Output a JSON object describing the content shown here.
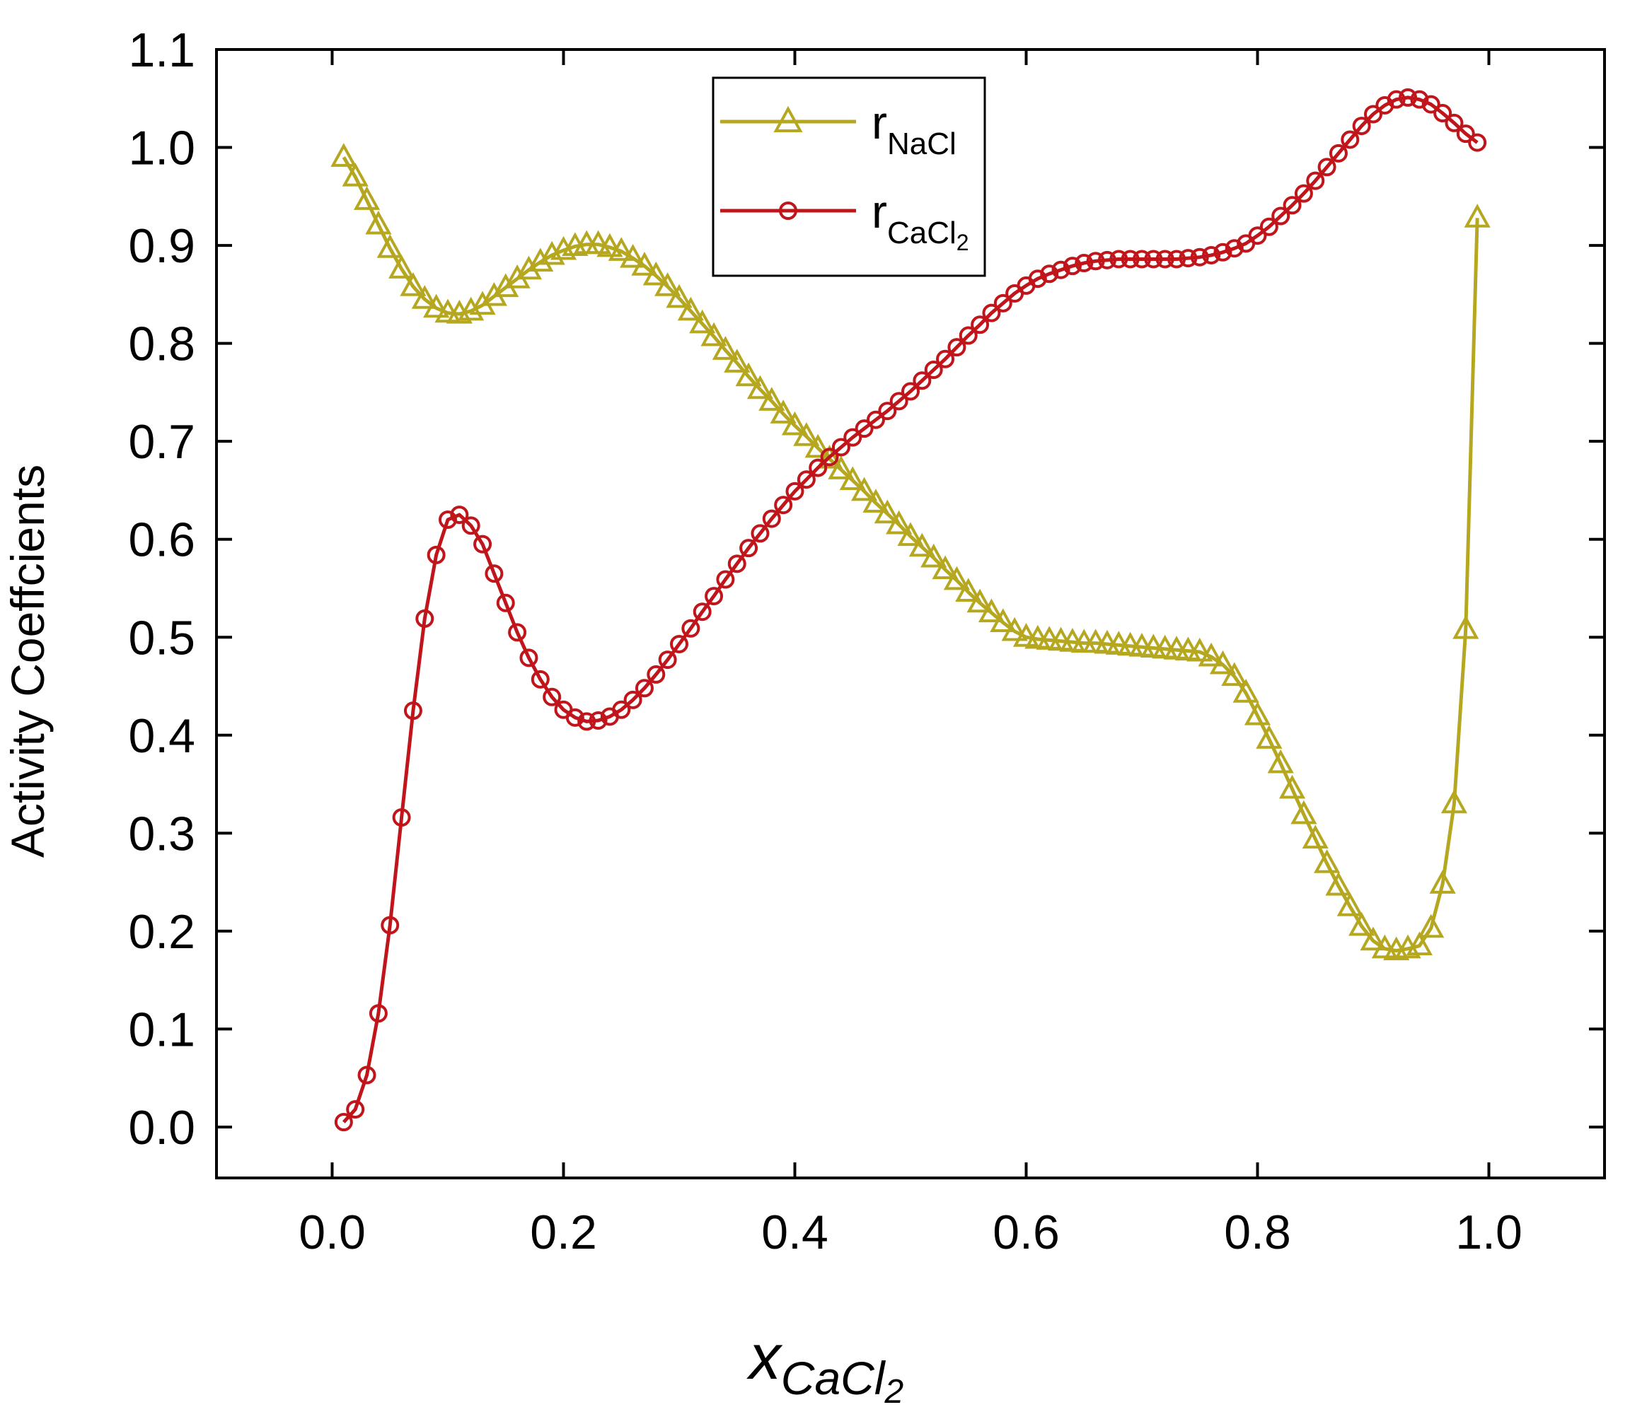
{
  "chart_data": {
    "type": "line",
    "title": "",
    "ylabel": "Activity Coeffcients",
    "xlabel": {
      "main": "x",
      "sub_main": "CaCl",
      "sub_index": "2"
    },
    "xlim": [
      -0.1,
      1.1
    ],
    "ylim": [
      -0.052,
      1.1
    ],
    "xticks": [
      0.0,
      0.2,
      0.4,
      0.6,
      0.8,
      1.0
    ],
    "xtick_labels": [
      "0.0",
      "0.2",
      "0.4",
      "0.6",
      "0.8",
      "1.0"
    ],
    "yticks": [
      0.0,
      0.1,
      0.2,
      0.3,
      0.4,
      0.5,
      0.6,
      0.7,
      0.8,
      0.9,
      1.0,
      1.1
    ],
    "ytick_labels": [
      "0.0",
      "0.1",
      "0.2",
      "0.3",
      "0.4",
      "0.5",
      "0.6",
      "0.7",
      "0.8",
      "0.9",
      "1.0",
      "1.1"
    ],
    "grid": false,
    "legend_position": "top-center",
    "series": [
      {
        "name": "rNaCl",
        "legend_main": "r",
        "legend_sub": "NaCl",
        "color": "#b5a71f",
        "marker": "triangle-open",
        "x": [
          0.01,
          0.02,
          0.03,
          0.04,
          0.05,
          0.06,
          0.07,
          0.08,
          0.09,
          0.1,
          0.11,
          0.12,
          0.13,
          0.14,
          0.15,
          0.16,
          0.17,
          0.18,
          0.19,
          0.2,
          0.21,
          0.22,
          0.23,
          0.24,
          0.25,
          0.26,
          0.27,
          0.28,
          0.29,
          0.3,
          0.31,
          0.32,
          0.33,
          0.34,
          0.35,
          0.36,
          0.37,
          0.38,
          0.39,
          0.4,
          0.41,
          0.42,
          0.43,
          0.44,
          0.45,
          0.46,
          0.47,
          0.48,
          0.49,
          0.5,
          0.51,
          0.52,
          0.53,
          0.54,
          0.55,
          0.56,
          0.57,
          0.58,
          0.59,
          0.6,
          0.61,
          0.62,
          0.63,
          0.64,
          0.65,
          0.66,
          0.67,
          0.68,
          0.69,
          0.7,
          0.71,
          0.72,
          0.73,
          0.74,
          0.75,
          0.76,
          0.77,
          0.78,
          0.79,
          0.8,
          0.81,
          0.82,
          0.83,
          0.84,
          0.85,
          0.86,
          0.87,
          0.88,
          0.89,
          0.9,
          0.91,
          0.92,
          0.93,
          0.94,
          0.95,
          0.96,
          0.97,
          0.98,
          0.99
        ],
        "values": [
          0.99,
          0.97,
          0.946,
          0.921,
          0.897,
          0.876,
          0.858,
          0.845,
          0.836,
          0.831,
          0.83,
          0.833,
          0.839,
          0.848,
          0.857,
          0.866,
          0.875,
          0.883,
          0.89,
          0.895,
          0.899,
          0.901,
          0.901,
          0.898,
          0.894,
          0.887,
          0.879,
          0.869,
          0.858,
          0.846,
          0.833,
          0.82,
          0.807,
          0.793,
          0.78,
          0.766,
          0.753,
          0.741,
          0.728,
          0.716,
          0.705,
          0.693,
          0.682,
          0.671,
          0.66,
          0.649,
          0.637,
          0.626,
          0.615,
          0.603,
          0.592,
          0.581,
          0.569,
          0.558,
          0.546,
          0.535,
          0.525,
          0.515,
          0.506,
          0.5,
          0.498,
          0.497,
          0.496,
          0.495,
          0.494,
          0.494,
          0.493,
          0.492,
          0.491,
          0.49,
          0.489,
          0.488,
          0.487,
          0.486,
          0.485,
          0.48,
          0.472,
          0.46,
          0.443,
          0.42,
          0.396,
          0.371,
          0.345,
          0.319,
          0.294,
          0.269,
          0.246,
          0.225,
          0.205,
          0.19,
          0.182,
          0.18,
          0.182,
          0.185,
          0.203,
          0.248,
          0.33,
          0.508,
          0.928
        ]
      },
      {
        "name": "rCaCl2",
        "legend_main": "r",
        "legend_sub": "CaCl",
        "legend_sub_index": "2",
        "color": "#c0151b",
        "marker": "circle-open",
        "x": [
          0.01,
          0.02,
          0.03,
          0.04,
          0.05,
          0.06,
          0.07,
          0.08,
          0.09,
          0.1,
          0.11,
          0.12,
          0.13,
          0.14,
          0.15,
          0.16,
          0.17,
          0.18,
          0.19,
          0.2,
          0.21,
          0.22,
          0.23,
          0.24,
          0.25,
          0.26,
          0.27,
          0.28,
          0.29,
          0.3,
          0.31,
          0.32,
          0.33,
          0.34,
          0.35,
          0.36,
          0.37,
          0.38,
          0.39,
          0.4,
          0.41,
          0.42,
          0.43,
          0.44,
          0.45,
          0.46,
          0.47,
          0.48,
          0.49,
          0.5,
          0.51,
          0.52,
          0.53,
          0.54,
          0.55,
          0.56,
          0.57,
          0.58,
          0.59,
          0.6,
          0.61,
          0.62,
          0.63,
          0.64,
          0.65,
          0.66,
          0.67,
          0.68,
          0.69,
          0.7,
          0.71,
          0.72,
          0.73,
          0.74,
          0.75,
          0.76,
          0.77,
          0.78,
          0.79,
          0.8,
          0.81,
          0.82,
          0.83,
          0.84,
          0.85,
          0.86,
          0.87,
          0.88,
          0.89,
          0.9,
          0.91,
          0.92,
          0.93,
          0.94,
          0.95,
          0.96,
          0.97,
          0.98,
          0.99
        ],
        "values": [
          0.005,
          0.018,
          0.053,
          0.116,
          0.206,
          0.316,
          0.425,
          0.519,
          0.584,
          0.62,
          0.625,
          0.614,
          0.595,
          0.565,
          0.535,
          0.505,
          0.479,
          0.457,
          0.439,
          0.426,
          0.418,
          0.414,
          0.415,
          0.419,
          0.426,
          0.436,
          0.448,
          0.462,
          0.477,
          0.493,
          0.509,
          0.526,
          0.542,
          0.559,
          0.575,
          0.591,
          0.606,
          0.621,
          0.635,
          0.649,
          0.661,
          0.673,
          0.684,
          0.694,
          0.704,
          0.713,
          0.722,
          0.731,
          0.741,
          0.751,
          0.762,
          0.773,
          0.784,
          0.796,
          0.808,
          0.819,
          0.831,
          0.841,
          0.851,
          0.859,
          0.866,
          0.871,
          0.875,
          0.879,
          0.882,
          0.884,
          0.885,
          0.886,
          0.886,
          0.886,
          0.886,
          0.886,
          0.886,
          0.887,
          0.888,
          0.89,
          0.893,
          0.897,
          0.902,
          0.91,
          0.919,
          0.93,
          0.941,
          0.953,
          0.966,
          0.98,
          0.994,
          1.008,
          1.022,
          1.034,
          1.043,
          1.049,
          1.051,
          1.049,
          1.044,
          1.035,
          1.025,
          1.014,
          1.005
        ]
      }
    ]
  }
}
